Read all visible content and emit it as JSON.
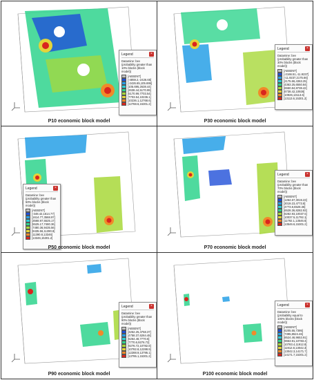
{
  "colors": {
    "absent": "#c0c0c0",
    "bins": [
      "#1f4fd8",
      "#27a0e6",
      "#2ecfd6",
      "#2fd48d",
      "#4fcf3a",
      "#a8d83a",
      "#e4d43a",
      "#f08a2a",
      "#d9251e"
    ]
  },
  "icons": {
    "close": "close-icon",
    "axes": "axis-triad-icon"
  },
  "panels": [
    {
      "caption": "P10 economic block model",
      "legend": {
        "title": "Legend",
        "subtitle": "Datamine: bev (probability greater than 10% blocks (block model))",
        "items": [
          "[ABSENT]",
          "[-4859.2,-2426.65]",
          "[-2426.65,105.695]",
          "[105.695,2638.44]",
          "[2638.44,5170.99]",
          "[5170.99,7703.54]",
          "[7703.54,10236.1]",
          "[10236.1,12768.6]",
          "[12768.6,15301.2]"
        ]
      }
    },
    {
      "caption": "P30 economic block model",
      "legend": {
        "title": "Legend",
        "subtitle": "Datamine: bev (probability greater than 30% blocks (block model))",
        "items": [
          "[ABSENT]",
          "[-2166.51,-11.9237]",
          "[-11.9237,2175.66]",
          "[2175.66,4363.25]",
          "[4363.25,6550.84]",
          "[6550.84,8738.42]",
          "[8738.42,10926]",
          "[10926,13113.6]",
          "[13113.6,15301.2]"
        ]
      }
    },
    {
      "caption": "P50 economic block model",
      "legend": {
        "title": "Legend",
        "subtitle": "Datamine: bev (probability greater than 50% blocks (block model))",
        "items": [
          "[ABSENT]",
          "[-348.42,1614.77]",
          "[1614.77,3568.97]",
          "[3568.97,5525.17]",
          "[5525.17,7480.36]",
          "[7480.36,9435.56]",
          "[9435.56,11390.8]",
          "[11390.8,13346]",
          "[13346,15301.2]"
        ]
      }
    },
    {
      "caption": "P70 economic block model",
      "legend": {
        "title": "Legend",
        "subtitle": "Datamine: bev (probability greater than 70% blocks (block model))",
        "items": [
          "[ABSENT]",
          "[1264.67,3019.23]",
          "[3019.23,4773.8]",
          "[4773.8,6528.36]",
          "[6528.36,8282.93]",
          "[8282.93,10037.5]",
          "[10037.5,11792.1]",
          "[11792.1,13546.6]",
          "[13546.6,15301.2]"
        ]
      }
    },
    {
      "caption": "P90 economic block model",
      "legend": {
        "title": "Legend",
        "subtitle": "Datamine: bev (probability greater than 90% blocks (block model))",
        "items": [
          "[ABSENT]",
          "[3252.25,4758.37]",
          "[4758.37,6264.48]",
          "[6264.48,7770.6]",
          "[7770.6,9276.72]",
          "[9276.72,10782.8]",
          "[10782.8,12288.9]",
          "[12288.9,13795.1]",
          "[13795.1,15301.2]"
        ]
      }
    },
    {
      "caption": "P100 economic block model",
      "legend": {
        "title": "Legend",
        "subtitle": "Datamine: bev (probability equal to 100% blocks (block model))",
        "items": [
          "[ABSENT]",
          "[6205.55,7395]",
          "[7395,8524.46]",
          "[8524.46,9653.91]",
          "[9653.91,10783.4]",
          "[10783.4,11912.8]",
          "[11912.8,13042.3]",
          "[13042.3,14171.7]",
          "[14171.7,15301.2]"
        ]
      }
    }
  ]
}
